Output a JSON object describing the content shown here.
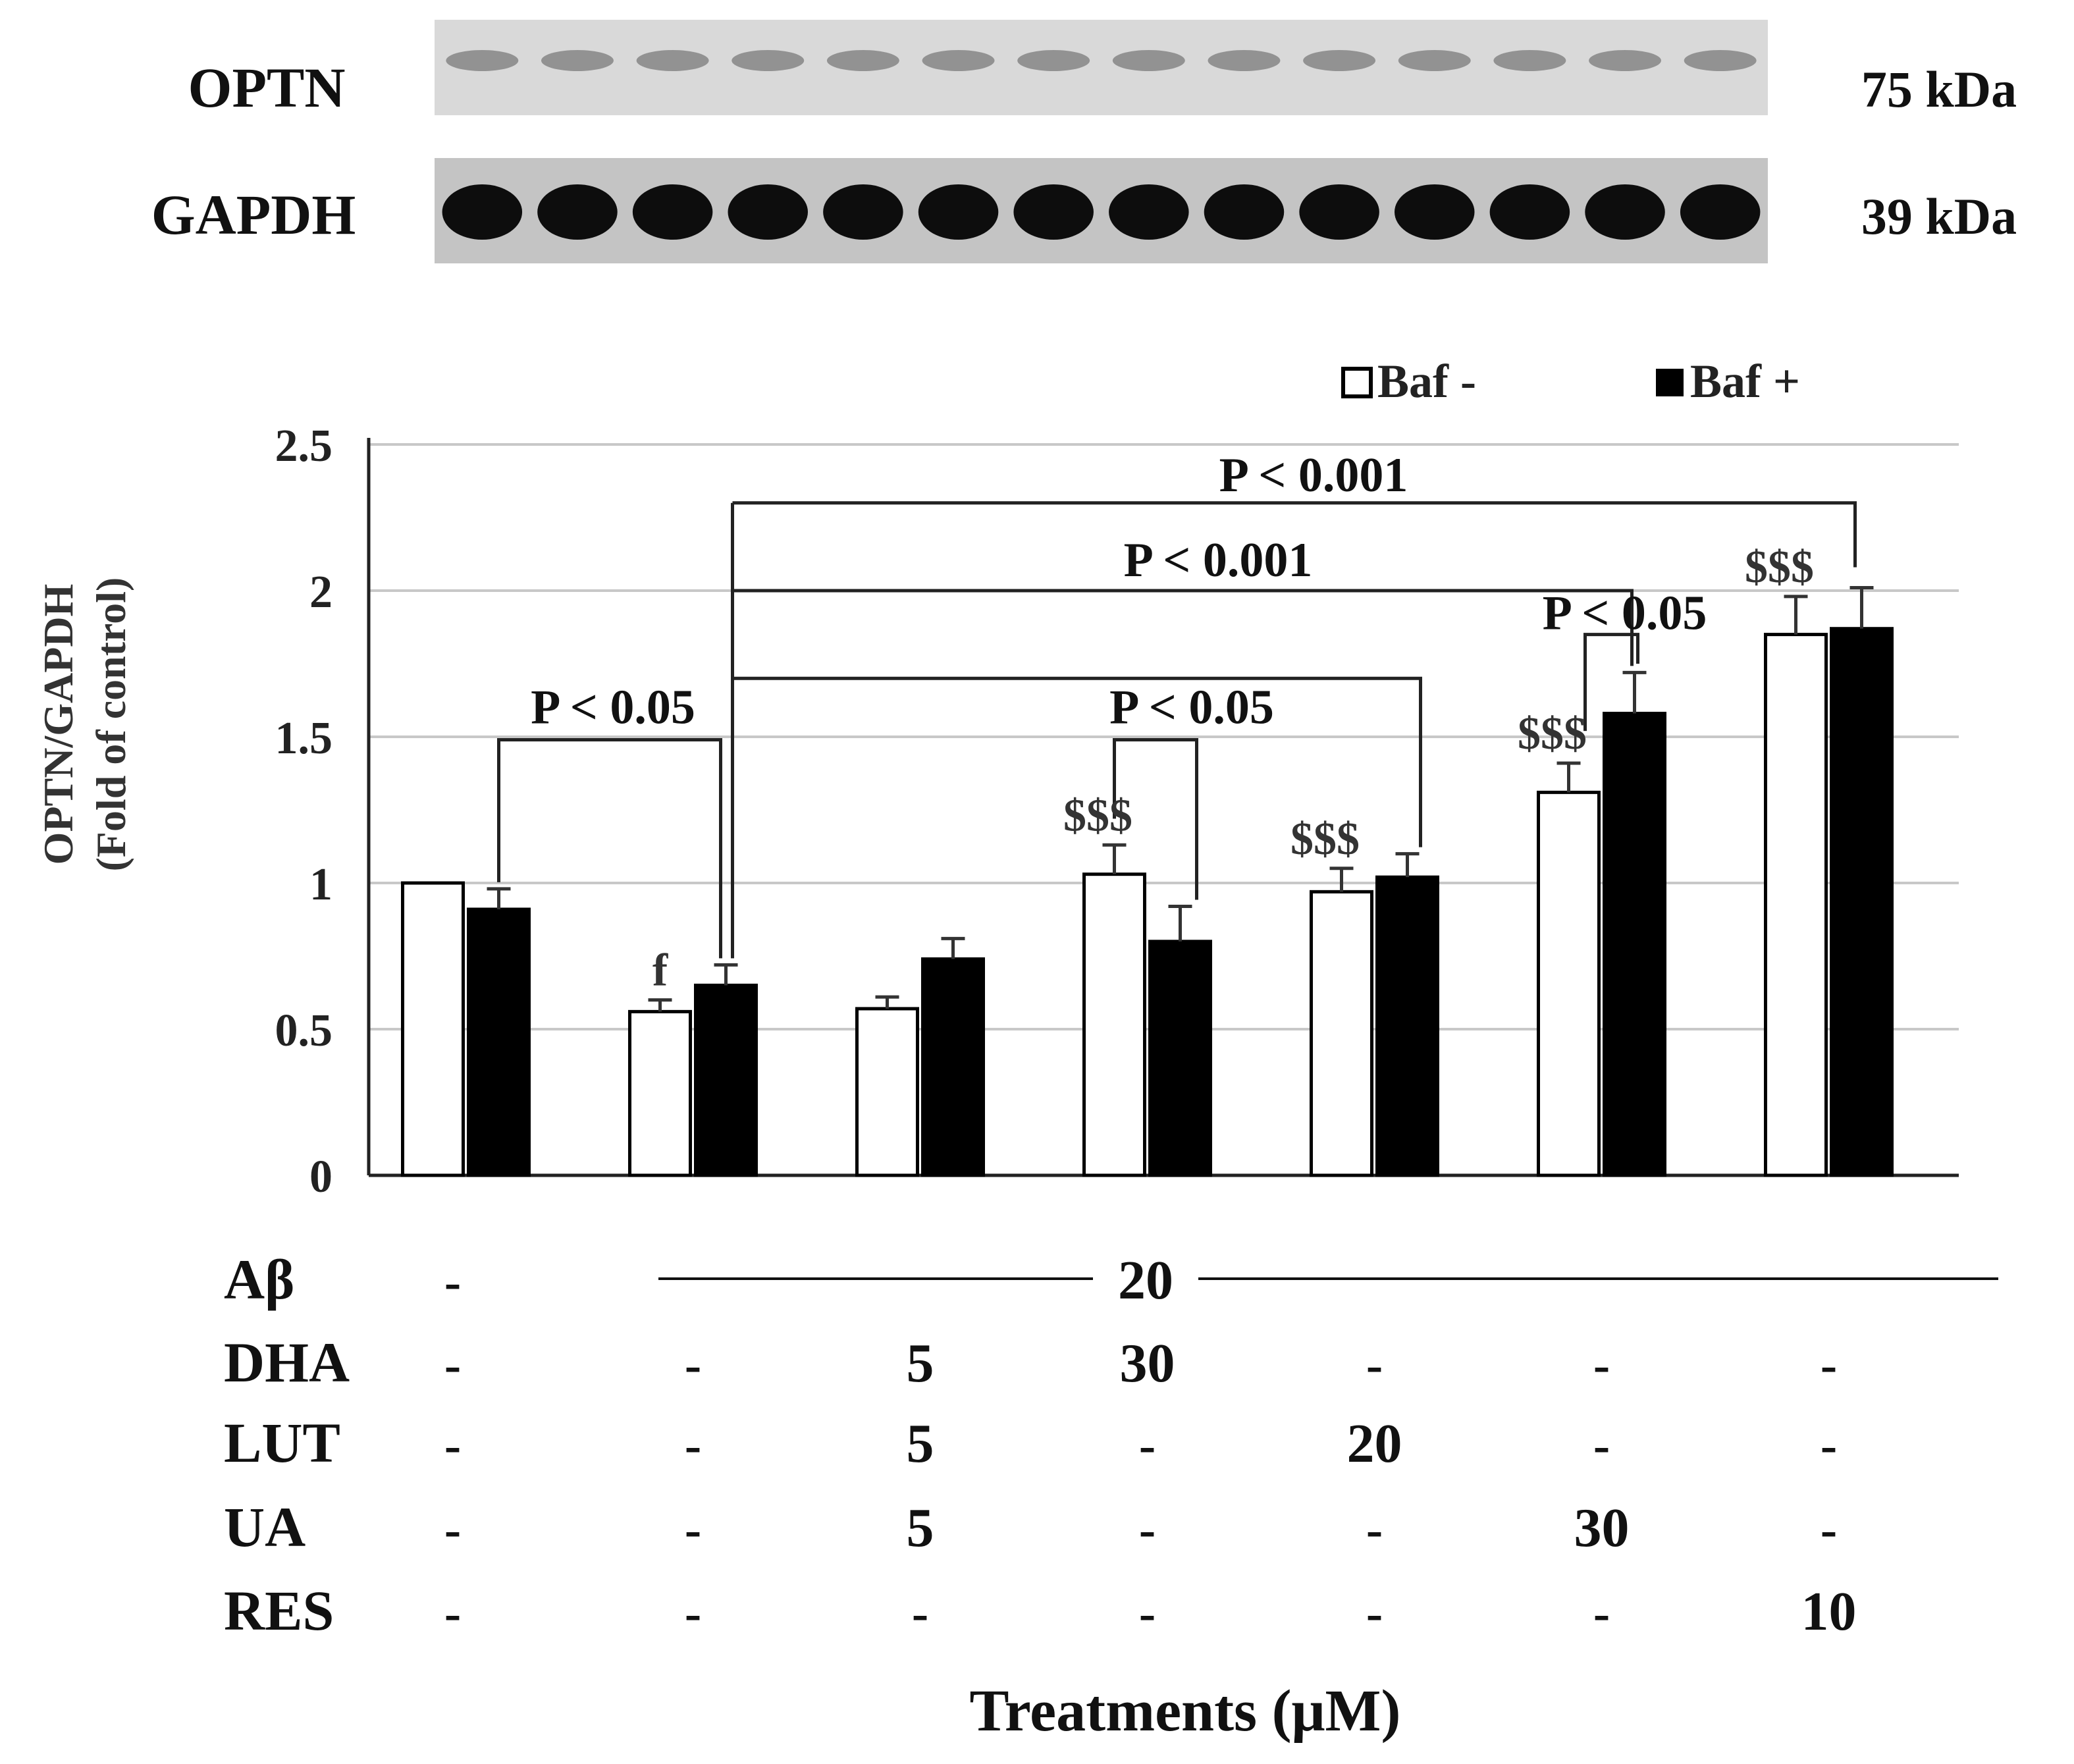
{
  "blot": {
    "lanes": 14,
    "rows": [
      {
        "label": "OPTN",
        "size": "75 kDa",
        "band_intensity": "faint"
      },
      {
        "label": "GAPDH",
        "size": "39 kDa",
        "band_intensity": "strong"
      }
    ]
  },
  "chart_data": {
    "type": "bar",
    "ylabel_line1": "OPTN/GAPDH",
    "ylabel_line2": "(Fold  of control)",
    "xlabel": "Treatments (μM)",
    "ylim": [
      0,
      2.5
    ],
    "yticks": [
      "0",
      "0.5",
      "1",
      "1.5",
      "2",
      "2.5"
    ],
    "ytick_values": [
      0,
      0.5,
      1,
      1.5,
      2,
      2.5
    ],
    "grid": true,
    "legend_position": "top-right",
    "groups": 7,
    "series": [
      {
        "name": "Baf -",
        "color": "#ffffff",
        "values": [
          1.0,
          0.56,
          0.57,
          1.03,
          0.97,
          1.31,
          1.85
        ],
        "errors": [
          0.0,
          0.04,
          0.04,
          0.1,
          0.08,
          0.1,
          0.13
        ]
      },
      {
        "name": "Baf +",
        "color": "#000000",
        "values": [
          0.91,
          0.65,
          0.74,
          0.8,
          1.02,
          1.58,
          1.87
        ],
        "errors": [
          0.07,
          0.07,
          0.07,
          0.12,
          0.08,
          0.14,
          0.14
        ]
      }
    ],
    "bar_labels": [
      {
        "group": 1,
        "series": 0,
        "text": "f"
      },
      {
        "group": 3,
        "series": 0,
        "text": "$$$"
      },
      {
        "group": 4,
        "series": 0,
        "text": "$$$"
      },
      {
        "group": 5,
        "series": 0,
        "text": "$$$"
      },
      {
        "group": 6,
        "series": 0,
        "text": "$$$"
      }
    ],
    "significance": [
      {
        "from_group": 0,
        "to_group": 1,
        "label": "P < 0.05"
      },
      {
        "from_group": 1,
        "to_group": 6,
        "label": "P < 0.001"
      },
      {
        "from_group": 1,
        "to_group": 5,
        "label": "P < 0.001"
      },
      {
        "from_group": 1,
        "to_group": 4,
        "label": ""
      },
      {
        "group": 3,
        "label": "P < 0.05"
      },
      {
        "group": 5,
        "label": "P < 0.05"
      }
    ]
  },
  "treatment_table": {
    "rows": [
      {
        "label": "Aβ",
        "values": [
          "-",
          "",
          "",
          "20",
          "",
          "",
          ""
        ],
        "bracket_text": "20"
      },
      {
        "label": "DHA",
        "values": [
          "-",
          "-",
          "5",
          "30",
          "-",
          "-",
          "-"
        ]
      },
      {
        "label": "LUT",
        "values": [
          "-",
          "-",
          "5",
          "-",
          "20",
          "-",
          "-"
        ]
      },
      {
        "label": "UA",
        "values": [
          "-",
          "-",
          "5",
          "-",
          "-",
          "30",
          "-"
        ]
      },
      {
        "label": "RES",
        "values": [
          "-",
          "-",
          "-",
          "-",
          "-",
          "-",
          "10"
        ]
      }
    ]
  }
}
